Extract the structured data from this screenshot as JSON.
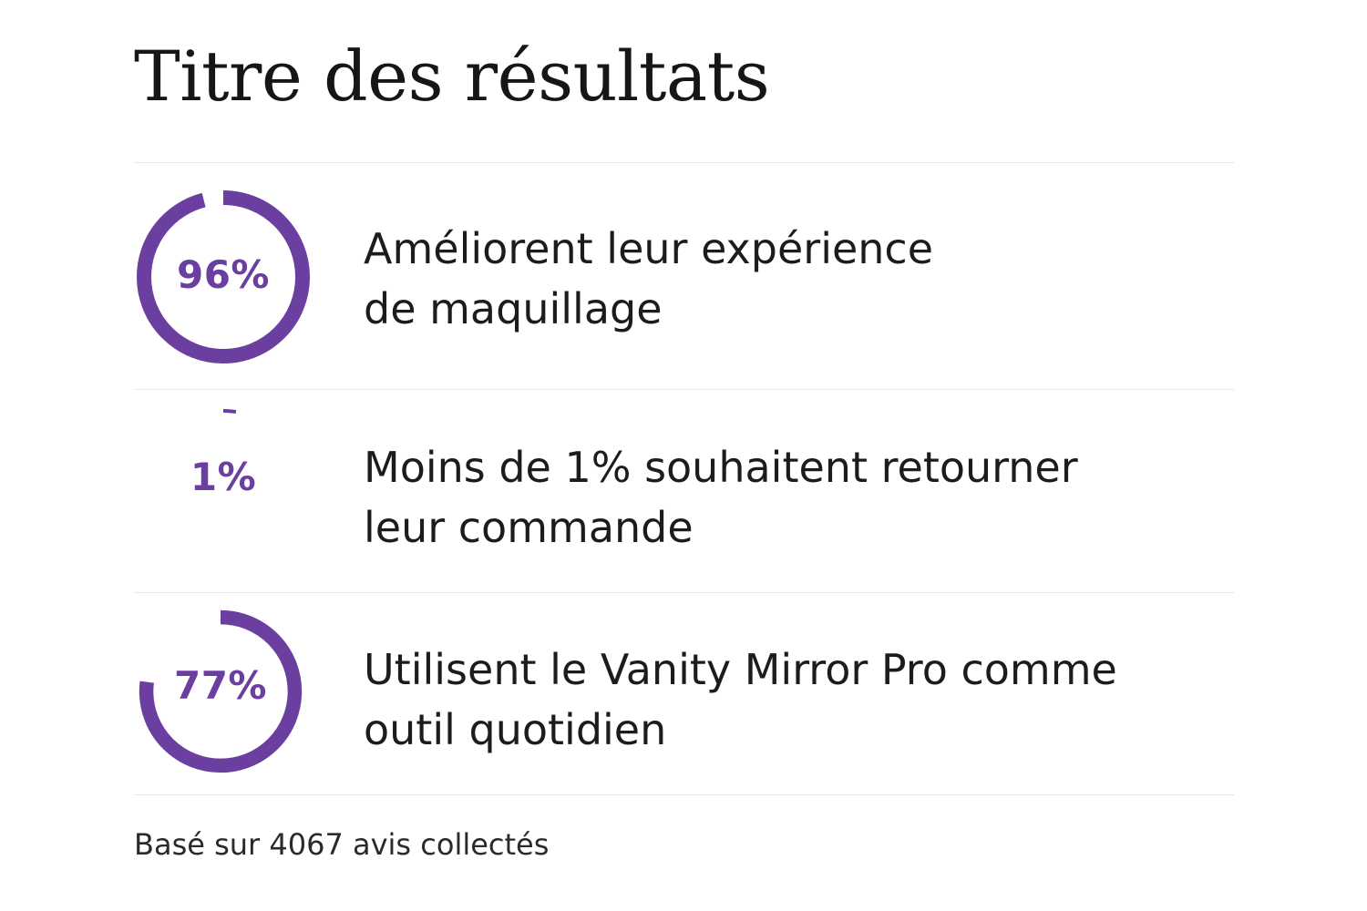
{
  "title": "Titre des résultats",
  "accent_color": "#6b3fa0",
  "track_color": "#ffffff",
  "stats": [
    {
      "percent": 96,
      "label": "96%",
      "text_lines": [
        "Améliorent leur expérience",
        "de maquillage"
      ]
    },
    {
      "percent": 1,
      "label": "1%",
      "text_lines": [
        "Moins de 1% souhaitent retourner",
        "leur commande"
      ]
    },
    {
      "percent": 77,
      "label": "77%",
      "text_lines": [
        "Utilisent le Vanity Mirror Pro comme",
        "outil quotidien"
      ]
    }
  ],
  "footnote": "Basé sur 4067 avis collectés"
}
